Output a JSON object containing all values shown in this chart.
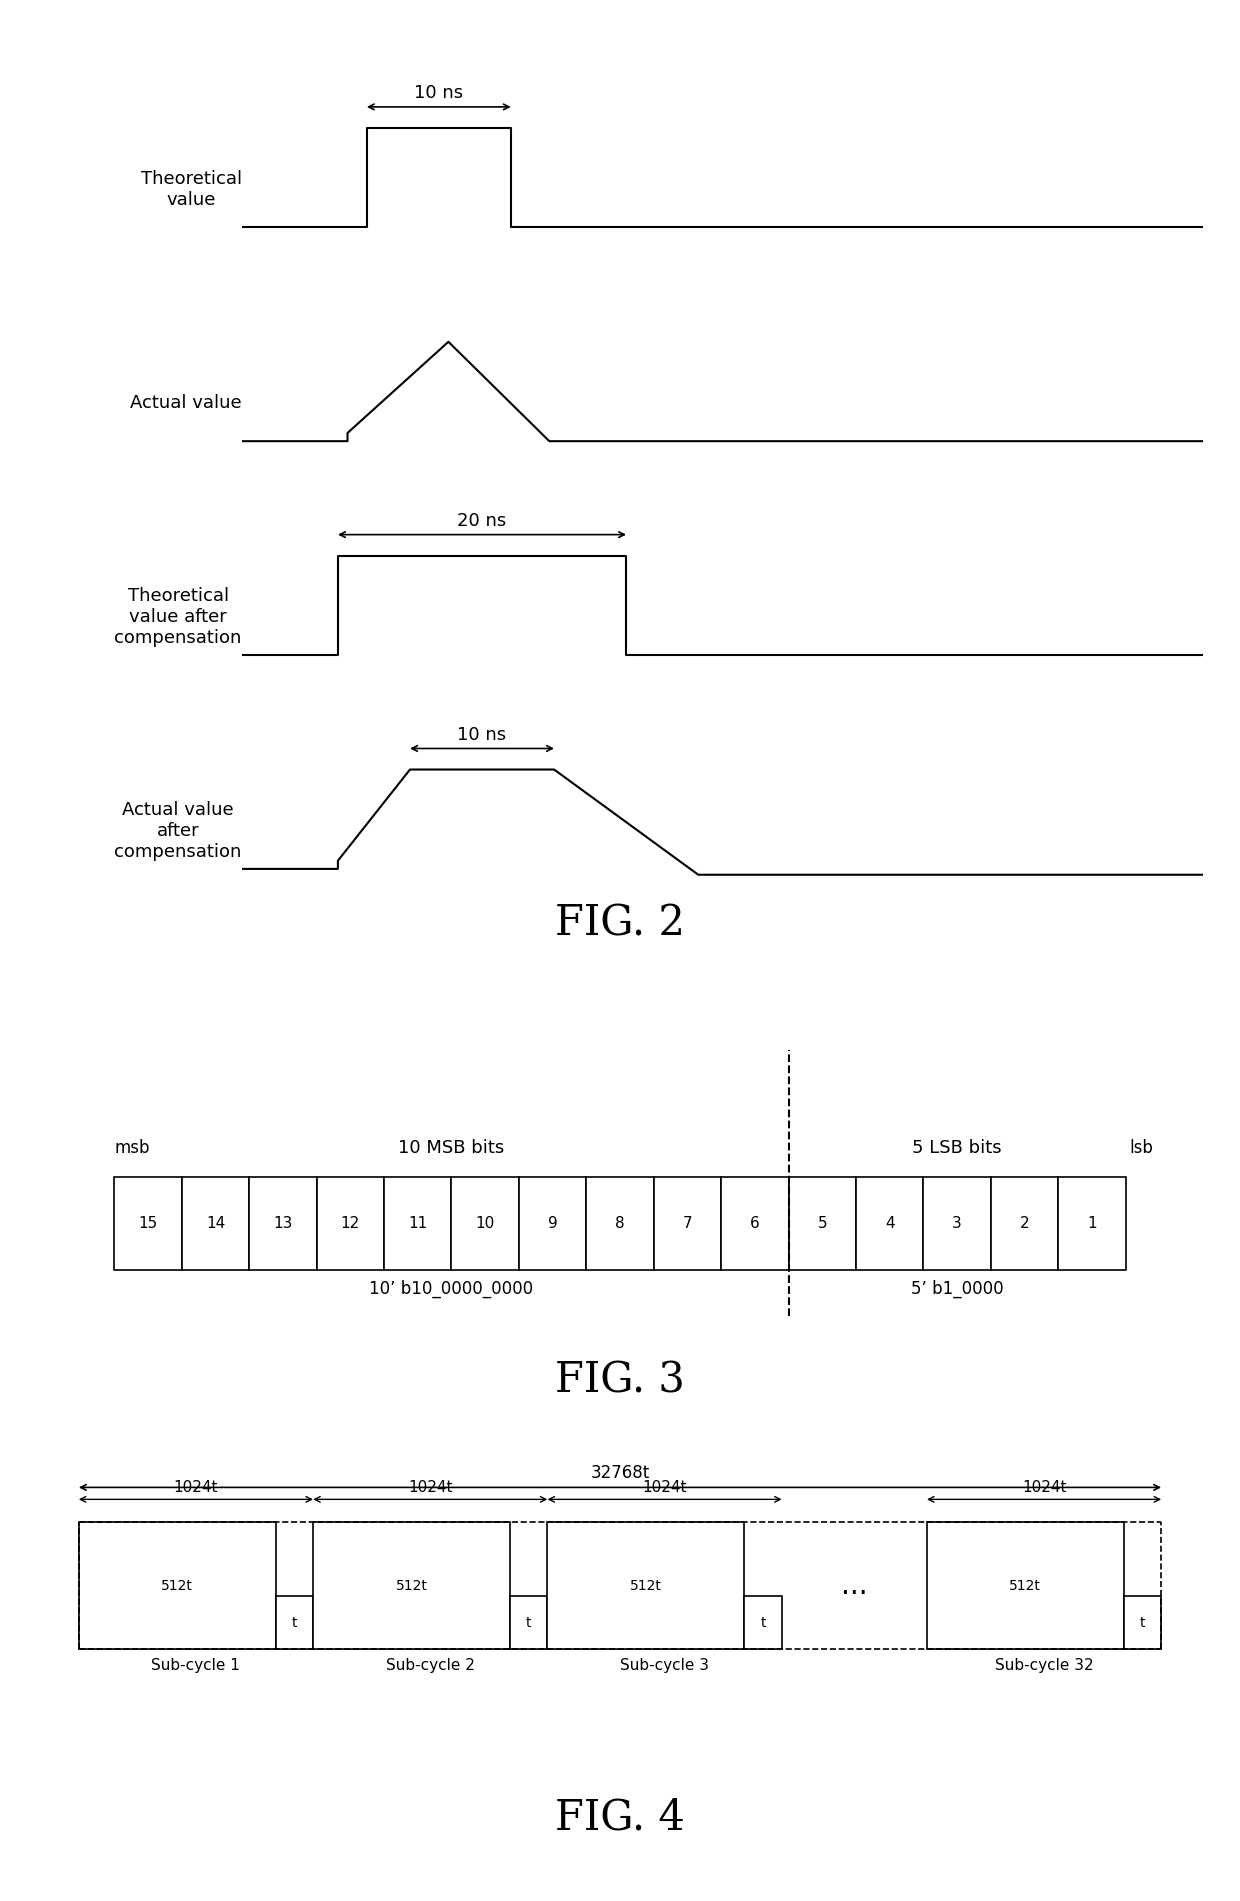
{
  "bg_color": "#ffffff",
  "line_color": "#000000",
  "fig2_title": "FIG. 2",
  "fig3_title": "FIG. 3",
  "fig4_title": "FIG. 4",
  "waveform1_label": "Theoretical\nvalue",
  "waveform1_annotation": "10 ns",
  "waveform2_label": "Actual value",
  "waveform3_label": "Theoretical\nvalue after\ncompensation",
  "waveform3_annotation": "20 ns",
  "waveform4_label": "Actual value\nafter\ncompensation",
  "waveform4_annotation": "10 ns",
  "fig3_msb_label": "msb",
  "fig3_lsb_label": "lsb",
  "fig3_msb_bits_label": "10 MSB bits",
  "fig3_lsb_bits_label": "5 LSB bits",
  "fig3_bits": [
    15,
    14,
    13,
    12,
    11,
    10,
    9,
    8,
    7,
    6,
    5,
    4,
    3,
    2,
    1
  ],
  "fig3_msb_value": "10’ b10_0000_0000",
  "fig3_lsb_value": "5’ b1_0000",
  "fig4_total_label": "32768t",
  "fig4_sub_labels": [
    "1024t",
    "1024t",
    "1024t",
    "1024t"
  ],
  "fig4_cycle_labels": [
    "Sub-cycle 1",
    "Sub-cycle 2",
    "Sub-cycle 3",
    "Sub-cycle 32"
  ],
  "fig4_dots": "..."
}
